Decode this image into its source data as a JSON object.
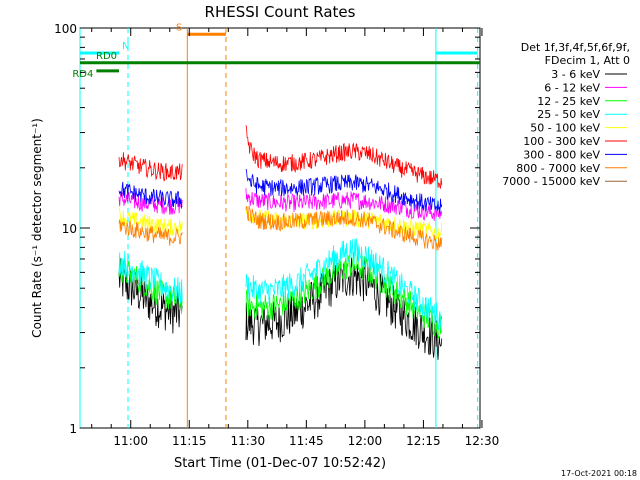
{
  "chart_data": {
    "type": "line",
    "title": "RHESSI Count Rates",
    "xlabel": "Start Time (01-Dec-07 10:52:42)",
    "ylabel": "Count Rate (s⁻¹ detector segment⁻¹)",
    "yscale": "log",
    "ylim": [
      1,
      100
    ],
    "xlim_minutes": [
      -5.7,
      96.8
    ],
    "x_ticks": [
      "11:00",
      "11:15",
      "11:30",
      "11:45",
      "12:00",
      "12:15",
      "12:30"
    ],
    "x_tick_minutes": [
      7.3,
      22.3,
      37.3,
      52.3,
      67.3,
      82.3,
      97.3
    ],
    "y_ticks": [
      "1",
      "10",
      "100"
    ],
    "y_tick_values": [
      1,
      10,
      100
    ],
    "grid": false,
    "legend": {
      "placement": "top-right",
      "header": [
        "Det 1f,3f,4f,5f,6f,9f,",
        "FDecim 1, Att 0"
      ]
    },
    "series": [
      {
        "name": "3 - 6 keV",
        "color": "#000000",
        "segments": [
          {
            "x": [
              4.3,
              6,
              9,
              12,
              15,
              18,
              20.5
            ],
            "y": [
              5.6,
              5.2,
              4.8,
              4.3,
              4.0,
              3.8,
              3.7
            ]
          },
          {
            "x": [
              36.8,
              40,
              45,
              50,
              55,
              60,
              64,
              68,
              72,
              76,
              80,
              84,
              87
            ],
            "y": [
              3.4,
              3.3,
              3.4,
              3.8,
              4.5,
              5.4,
              5.8,
              5.3,
              4.5,
              3.8,
              3.3,
              2.9,
              2.6
            ]
          }
        ]
      },
      {
        "name": "6 - 12 keV",
        "color": "#ff00ff",
        "segments": [
          {
            "x": [
              4.3,
              6,
              9,
              12,
              15,
              18,
              20.5
            ],
            "y": [
              14.2,
              13.8,
              13.5,
              13.2,
              13.0,
              12.9,
              13.0
            ]
          },
          {
            "x": [
              36.8,
              40,
              45,
              50,
              55,
              60,
              64,
              68,
              72,
              76,
              80,
              84,
              87
            ],
            "y": [
              14.5,
              13.7,
              13.4,
              13.3,
              13.5,
              13.7,
              13.8,
              13.6,
              13.2,
              12.8,
              12.3,
              12.0,
              11.8
            ]
          }
        ]
      },
      {
        "name": "12 - 25 keV",
        "color": "#00ff00",
        "segments": [
          {
            "x": [
              4.3,
              6,
              9,
              12,
              15,
              18,
              20.5
            ],
            "y": [
              6.3,
              6.0,
              5.6,
              5.1,
              4.7,
              4.4,
              4.3
            ]
          },
          {
            "x": [
              36.8,
              40,
              45,
              50,
              55,
              60,
              64,
              68,
              72,
              76,
              80,
              84,
              87
            ],
            "y": [
              4.2,
              4.0,
              4.1,
              4.5,
              5.2,
              6.1,
              6.6,
              6.2,
              5.4,
              4.6,
              4.0,
              3.5,
              3.2
            ]
          }
        ]
      },
      {
        "name": "25 - 50 keV",
        "color": "#00ffff",
        "segments": [
          {
            "x": [
              4.3,
              6,
              9,
              12,
              15,
              18,
              20.5
            ],
            "y": [
              6.9,
              6.6,
              6.1,
              5.6,
              5.2,
              4.9,
              4.8
            ]
          },
          {
            "x": [
              36.8,
              40,
              45,
              50,
              55,
              60,
              64,
              68,
              72,
              76,
              80,
              84,
              87
            ],
            "y": [
              5.2,
              4.8,
              4.9,
              5.3,
              6.1,
              7.2,
              7.8,
              7.2,
              6.2,
              5.2,
              4.5,
              3.9,
              3.5
            ]
          }
        ]
      },
      {
        "name": "50 - 100 keV",
        "color": "#ffff00",
        "segments": [
          {
            "x": [
              4.3,
              6,
              9,
              12,
              15,
              18,
              20.5
            ],
            "y": [
              11.6,
              11.2,
              10.8,
              10.5,
              10.2,
              10.1,
              10.2
            ]
          },
          {
            "x": [
              36.8,
              40,
              45,
              50,
              55,
              60,
              64,
              68,
              72,
              76,
              80,
              84,
              87
            ],
            "y": [
              12.0,
              11.2,
              10.9,
              10.8,
              10.9,
              11.1,
              11.2,
              11.0,
              10.7,
              10.3,
              10.0,
              9.7,
              9.5
            ]
          }
        ]
      },
      {
        "name": "100 - 300 keV",
        "color": "#ff0000",
        "segments": [
          {
            "x": [
              4.3,
              6,
              9,
              12,
              15,
              18,
              20.5
            ],
            "y": [
              22.5,
              21.5,
              20.5,
              19.8,
              19.2,
              18.9,
              19.0
            ]
          },
          {
            "x": [
              36.8,
              38,
              40,
              45,
              50,
              55,
              60,
              64,
              68,
              72,
              76,
              80,
              84,
              87
            ],
            "y": [
              30.0,
              24.5,
              22.0,
              21.0,
              21.2,
              22.0,
              23.5,
              24.2,
              23.5,
              21.8,
              20.0,
              18.8,
              17.8,
              17.2
            ]
          }
        ]
      },
      {
        "name": "300 - 800 keV",
        "color": "#0000ff",
        "segments": [
          {
            "x": [
              4.3,
              6,
              9,
              12,
              15,
              18,
              20.5
            ],
            "y": [
              15.8,
              15.3,
              14.8,
              14.3,
              14.0,
              13.8,
              13.9
            ]
          },
          {
            "x": [
              36.8,
              38,
              40,
              45,
              50,
              55,
              60,
              64,
              68,
              72,
              76,
              80,
              84,
              87
            ],
            "y": [
              19.0,
              17.0,
              16.2,
              15.8,
              15.9,
              16.2,
              16.6,
              16.8,
              16.4,
              15.6,
              14.6,
              13.8,
              13.0,
              12.6
            ]
          }
        ]
      },
      {
        "name": "800 - 7000 keV",
        "color": "#ff8000",
        "segments": [
          {
            "x": [
              4.3,
              6,
              9,
              12,
              15,
              18,
              20.5
            ],
            "y": [
              10.5,
              10.1,
              9.7,
              9.4,
              9.1,
              9.0,
              9.1
            ]
          },
          {
            "x": [
              36.8,
              38,
              40,
              45,
              50,
              55,
              60,
              64,
              68,
              72,
              76,
              80,
              84,
              87
            ],
            "y": [
              12.5,
              11.5,
              10.9,
              10.7,
              10.8,
              11.0,
              11.2,
              11.3,
              10.9,
              10.2,
              9.5,
              9.0,
              8.6,
              8.3
            ]
          }
        ]
      },
      {
        "name": "7000 - 15000 keV",
        "color": "#996633",
        "segments": []
      }
    ],
    "attenuator_bars": [
      {
        "label": "N",
        "color": "#00ffff",
        "x0": -5.7,
        "x1": 4.3,
        "y": 75
      },
      {
        "label": "",
        "color": "#00ffff",
        "x0": 85.5,
        "x1": 96.2,
        "y": 75
      },
      {
        "label": "S",
        "color": "#ff8000",
        "x0": 21.8,
        "x1": 31.7,
        "y": 93
      },
      {
        "label": "RD0",
        "color": "#008000",
        "x0": -5.7,
        "x1": 96.8,
        "y": 67
      },
      {
        "label": "RD4",
        "color": "#008000",
        "x0": -1.5,
        "x1": 4.3,
        "y": 61
      }
    ],
    "vertical_lines": [
      {
        "x": -5.7,
        "color": "#00ffff",
        "style": "solid"
      },
      {
        "x": 6.6,
        "color": "#00ffff",
        "style": "dashed"
      },
      {
        "x": 21.8,
        "color": "#ff8000",
        "style": "solid"
      },
      {
        "x": 31.7,
        "color": "#ff8000",
        "style": "dashed"
      },
      {
        "x": 85.5,
        "color": "#00ffff",
        "style": "solid"
      },
      {
        "x": 96.2,
        "color": "#00ffff",
        "style": "dashed"
      }
    ],
    "footer_timestamp": "17-Oct-2021 00:18"
  }
}
